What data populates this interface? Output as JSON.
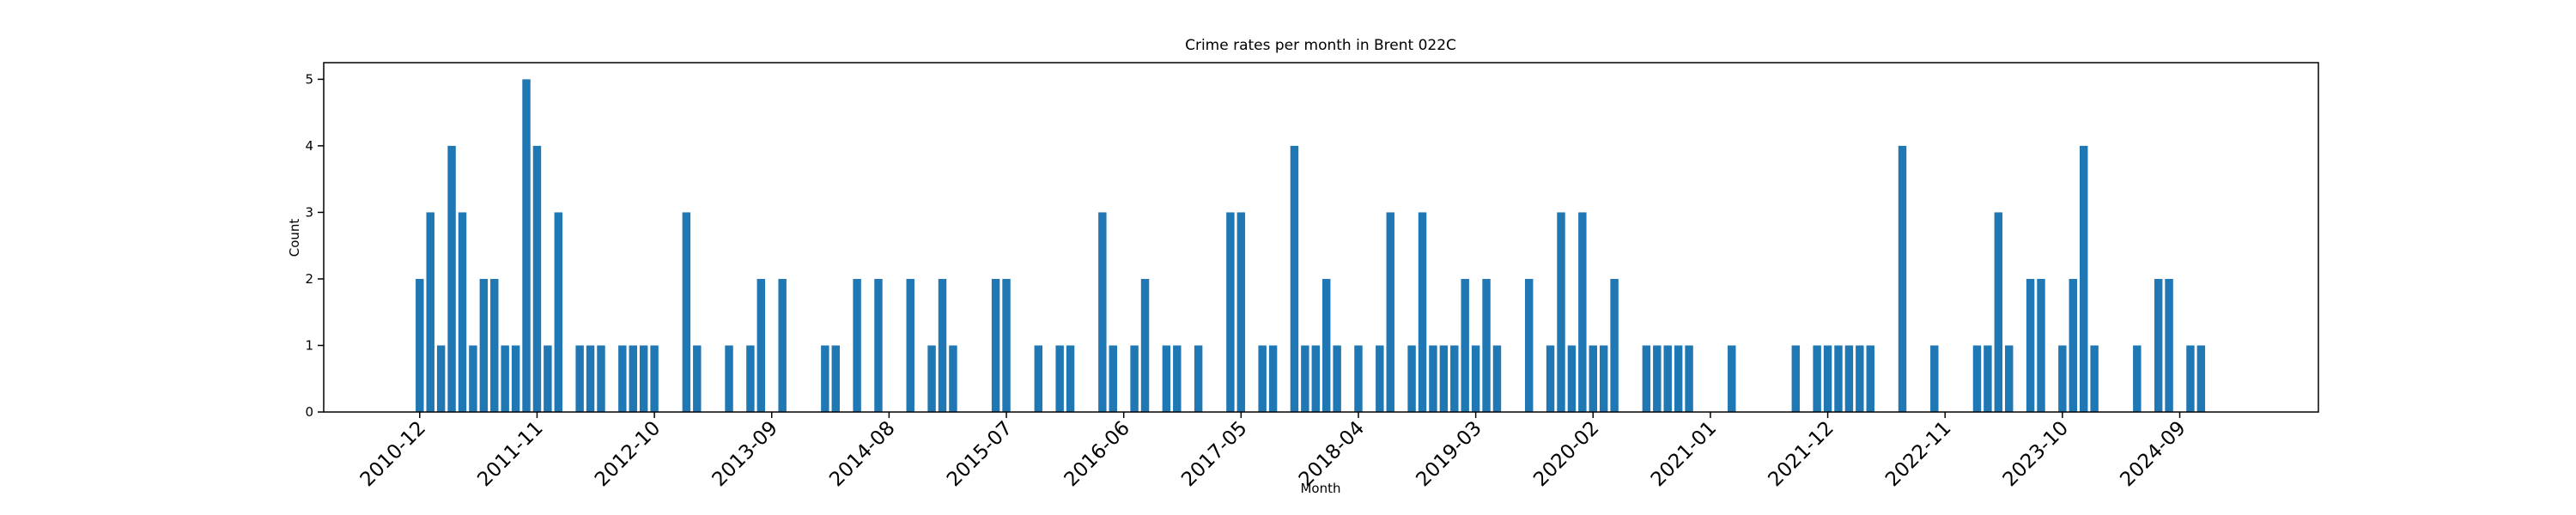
{
  "chart_data": {
    "type": "bar",
    "title": "Crime rates per month in Brent 022C",
    "x_label": "Month",
    "y_label": "Count",
    "color": "#1f77b4",
    "x": [
      "2010-12",
      "2011-01",
      "2011-02",
      "2011-03",
      "2011-04",
      "2011-05",
      "2011-06",
      "2011-07",
      "2011-08",
      "2011-09",
      "2011-10",
      "2011-11",
      "2011-12",
      "2012-01",
      "2012-03",
      "2012-04",
      "2012-05",
      "2012-07",
      "2012-08",
      "2012-09",
      "2012-10",
      "2013-01",
      "2013-02",
      "2013-05",
      "2013-07",
      "2013-08",
      "2013-10",
      "2014-02",
      "2014-03",
      "2014-05",
      "2014-07",
      "2014-10",
      "2014-12",
      "2015-01",
      "2015-02",
      "2015-06",
      "2015-07",
      "2015-10",
      "2015-12",
      "2016-01",
      "2016-04",
      "2016-05",
      "2016-07",
      "2016-08",
      "2016-10",
      "2016-11",
      "2017-01",
      "2017-04",
      "2017-05",
      "2017-07",
      "2017-08",
      "2017-10",
      "2017-11",
      "2017-12",
      "2018-01",
      "2018-02",
      "2018-04",
      "2018-06",
      "2018-07",
      "2018-09",
      "2018-10",
      "2018-11",
      "2018-12",
      "2019-01",
      "2019-02",
      "2019-03",
      "2019-04",
      "2019-05",
      "2019-08",
      "2019-10",
      "2019-11",
      "2019-12",
      "2020-01",
      "2020-02",
      "2020-03",
      "2020-04",
      "2020-07",
      "2020-08",
      "2020-09",
      "2020-10",
      "2020-11",
      "2021-03",
      "2021-09",
      "2021-11",
      "2021-12",
      "2022-01",
      "2022-02",
      "2022-03",
      "2022-04",
      "2022-07",
      "2022-10",
      "2023-02",
      "2023-03",
      "2023-04",
      "2023-05",
      "2023-07",
      "2023-08",
      "2023-10",
      "2023-11",
      "2023-12",
      "2024-01",
      "2024-05",
      "2024-07",
      "2024-08",
      "2024-10",
      "2024-11"
    ],
    "values": [
      2,
      3,
      1,
      4,
      3,
      1,
      2,
      2,
      1,
      1,
      5,
      4,
      1,
      3,
      1,
      1,
      1,
      1,
      1,
      1,
      1,
      3,
      1,
      1,
      1,
      2,
      2,
      1,
      1,
      2,
      2,
      2,
      1,
      2,
      1,
      2,
      2,
      1,
      1,
      1,
      3,
      1,
      1,
      2,
      1,
      1,
      1,
      3,
      3,
      1,
      1,
      4,
      1,
      1,
      2,
      1,
      1,
      1,
      3,
      1,
      3,
      1,
      1,
      1,
      2,
      1,
      2,
      1,
      2,
      1,
      3,
      1,
      3,
      1,
      1,
      2,
      1,
      1,
      1,
      1,
      1,
      1,
      1,
      1,
      1,
      1,
      1,
      1,
      1,
      4,
      1,
      1,
      1,
      3,
      1,
      2,
      2,
      1,
      2,
      4,
      1,
      1,
      2,
      2,
      1,
      1
    ],
    "xlim": [
      "2010-03",
      "2025-10"
    ],
    "xticks": [
      "2010-12",
      "2011-11",
      "2012-10",
      "2013-09",
      "2014-08",
      "2015-07",
      "2016-06",
      "2017-05",
      "2018-04",
      "2019-03",
      "2020-02",
      "2021-01",
      "2021-12",
      "2022-11",
      "2023-10",
      "2024-09"
    ],
    "ylim": [
      0,
      5.25
    ],
    "yticks": [
      0,
      1,
      2,
      3,
      4,
      5
    ]
  }
}
